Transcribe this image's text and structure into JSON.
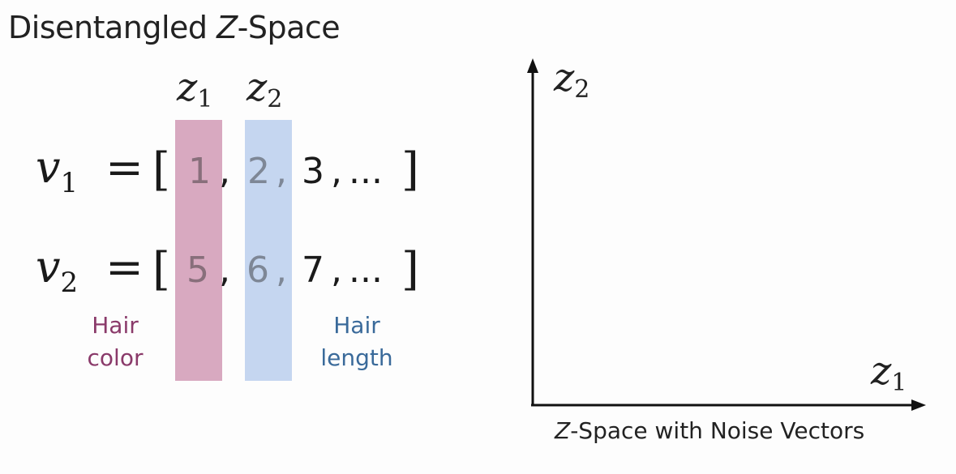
{
  "title": {
    "prefix": "Disentangled ",
    "italic": "Z",
    "suffix": "-Space"
  },
  "headers": [
    {
      "var": "z",
      "sub": "1"
    },
    {
      "var": "z",
      "sub": "2"
    }
  ],
  "rows": [
    {
      "var": "v",
      "sub": "1",
      "eq": "=",
      "open": "[",
      "c1": "1",
      "c2": "2",
      "c3": "3",
      "ellipsis": "...",
      "close": "]"
    },
    {
      "var": "v",
      "sub": "2",
      "eq": "=",
      "open": "[",
      "c1": "5",
      "c2": "6",
      "c3": "7",
      "ellipsis": "...",
      "close": "]"
    }
  ],
  "captions": {
    "pink_line1": "Hair",
    "pink_line2": "color",
    "blue_line1": "Hair",
    "blue_line2": "length"
  },
  "plot": {
    "y_label": {
      "var": "z",
      "sub": "2"
    },
    "x_label": {
      "var": "z",
      "sub": "1"
    },
    "caption": {
      "italic": "Z",
      "rest": "-Space with Noise Vectors"
    }
  },
  "colors": {
    "pink": "#d8a9c0",
    "blue": "#c5d6f0",
    "pink_text": "#8a3a6a",
    "blue_text": "#3a6a9a"
  }
}
